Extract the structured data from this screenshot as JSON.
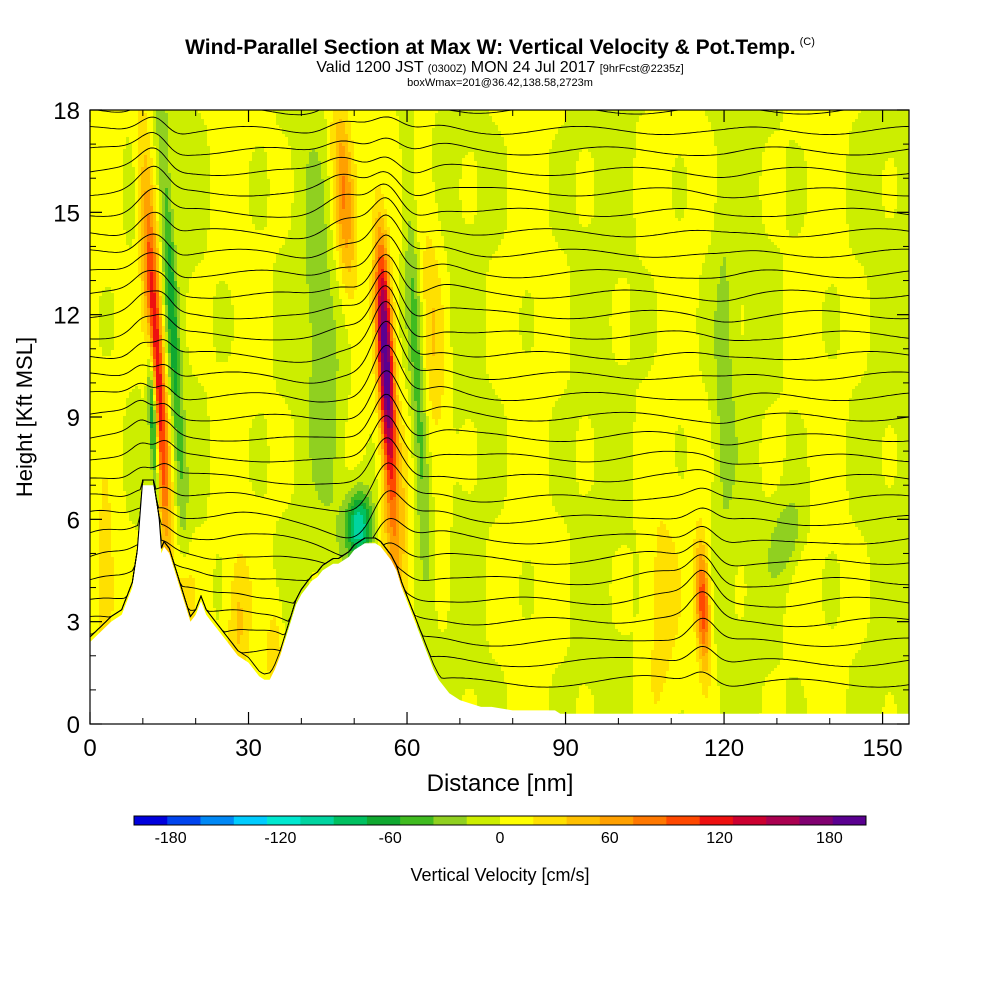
{
  "header": {
    "title": "Wind-Parallel Section at Max W: Vertical Velocity & Pot.Temp.",
    "title_mark": "(C)",
    "subtitle_main_1": "Valid 1200 JST",
    "subtitle_small_1": "(0300Z)",
    "subtitle_main_2": "MON 24 Jul 2017",
    "subtitle_small_2": "[9hrFcst@2235z]",
    "box_info": "boxWmax=201@36.42,138.58,2723m"
  },
  "colorbar": {
    "label": "Vertical Velocity [cm/s]",
    "tick_labels": [
      "-180",
      "-120",
      "-60",
      "0",
      "60",
      "120",
      "180"
    ],
    "tick_values": [
      -180,
      -120,
      -60,
      0,
      60,
      120,
      180
    ],
    "range": [
      -200,
      200
    ],
    "colors": [
      "#0000dd",
      "#0044ee",
      "#0088f5",
      "#00ccff",
      "#00e8d0",
      "#00d4a0",
      "#00c060",
      "#10a830",
      "#40bb20",
      "#90d020",
      "#ccee00",
      "#ffff00",
      "#ffe000",
      "#ffc000",
      "#ffa000",
      "#ff7800",
      "#ff4800",
      "#ee1010",
      "#cc0030",
      "#aa0050",
      "#800070",
      "#5a0090"
    ]
  },
  "chart_data": {
    "type": "heatmap",
    "xlabel": "Distance [nm]",
    "ylabel": "Height [Kft MSL]",
    "xlim": [
      0,
      155
    ],
    "ylim": [
      0,
      18
    ],
    "x_ticks": [
      0,
      30,
      60,
      90,
      120,
      150
    ],
    "x_tick_labels": [
      "0",
      "30",
      "60",
      "90",
      "120",
      "150"
    ],
    "y_ticks": [
      0,
      3,
      6,
      9,
      12,
      15,
      18
    ],
    "y_tick_labels": [
      "0",
      "3",
      "6",
      "9",
      "12",
      "15",
      "18"
    ],
    "terrain": [
      [
        0,
        2.4
      ],
      [
        2,
        2.7
      ],
      [
        4,
        3.0
      ],
      [
        6,
        3.2
      ],
      [
        7,
        3.6
      ],
      [
        8,
        4.0
      ],
      [
        9,
        5.0
      ],
      [
        10,
        7.0
      ],
      [
        11,
        7.0
      ],
      [
        12,
        7.0
      ],
      [
        13,
        6.0
      ],
      [
        13.5,
        5.0
      ],
      [
        14,
        5.2
      ],
      [
        15,
        5.0
      ],
      [
        16,
        4.5
      ],
      [
        17,
        4.0
      ],
      [
        18,
        3.5
      ],
      [
        19,
        3.0
      ],
      [
        20,
        3.2
      ],
      [
        21,
        3.6
      ],
      [
        22,
        3.2
      ],
      [
        23,
        3.0
      ],
      [
        24,
        2.8
      ],
      [
        25,
        2.6
      ],
      [
        26,
        2.4
      ],
      [
        27,
        2.2
      ],
      [
        28,
        2.0
      ],
      [
        30,
        1.8
      ],
      [
        31,
        1.6
      ],
      [
        32,
        1.4
      ],
      [
        33,
        1.3
      ],
      [
        34,
        1.3
      ],
      [
        35,
        1.6
      ],
      [
        36,
        2.0
      ],
      [
        37,
        2.5
      ],
      [
        38,
        3.0
      ],
      [
        39,
        3.5
      ],
      [
        40,
        3.8
      ],
      [
        41,
        4.0
      ],
      [
        42,
        4.2
      ],
      [
        43,
        4.3
      ],
      [
        44,
        4.5
      ],
      [
        45,
        4.6
      ],
      [
        46,
        4.7
      ],
      [
        47,
        4.7
      ],
      [
        48,
        4.8
      ],
      [
        49,
        4.9
      ],
      [
        50,
        5.1
      ],
      [
        51,
        5.2
      ],
      [
        52,
        5.3
      ],
      [
        53,
        5.3
      ],
      [
        54,
        5.3
      ],
      [
        55,
        5.2
      ],
      [
        56,
        5.0
      ],
      [
        57,
        4.8
      ],
      [
        58,
        4.5
      ],
      [
        59,
        4.0
      ],
      [
        60,
        3.6
      ],
      [
        61,
        3.2
      ],
      [
        62,
        2.8
      ],
      [
        63,
        2.4
      ],
      [
        64,
        2.0
      ],
      [
        65,
        1.6
      ],
      [
        66,
        1.3
      ],
      [
        67,
        1.1
      ],
      [
        68,
        0.9
      ],
      [
        70,
        0.7
      ],
      [
        72,
        0.6
      ],
      [
        74,
        0.5
      ],
      [
        76,
        0.5
      ],
      [
        80,
        0.4
      ],
      [
        85,
        0.4
      ],
      [
        88,
        0.4
      ],
      [
        89,
        0.3
      ],
      [
        92,
        0.3
      ],
      [
        100,
        0.3
      ],
      [
        110,
        0.3
      ],
      [
        120,
        0.3
      ],
      [
        130,
        0.3
      ],
      [
        140,
        0.3
      ],
      [
        150,
        0.3
      ],
      [
        155,
        0.3
      ]
    ],
    "updraft_features": [
      {
        "x": 12.5,
        "y": 10.5,
        "w": 150,
        "sigma_x": 1.6,
        "sigma_y": 5.5,
        "tilt": 0.35
      },
      {
        "x": 56,
        "y": 10.5,
        "w": 201,
        "sigma_x": 1.4,
        "sigma_y": 3.5,
        "tilt": 0.28
      },
      {
        "x": 48,
        "y": 15.5,
        "w": 70,
        "sigma_x": 2.0,
        "sigma_y": 3.0,
        "tilt": 0.35
      },
      {
        "x": 116,
        "y": 3.5,
        "w": 110,
        "sigma_x": 1.3,
        "sigma_y": 1.8,
        "tilt": 0.2
      },
      {
        "x": 58,
        "y": 5.0,
        "w": 45,
        "sigma_x": 2.5,
        "sigma_y": 3.0,
        "tilt": 0.0
      },
      {
        "x": 18,
        "y": 3.5,
        "w": 40,
        "sigma_x": 2.0,
        "sigma_y": 1.5,
        "tilt": 0.0
      },
      {
        "x": 28,
        "y": 3.0,
        "w": 35,
        "sigma_x": 2.0,
        "sigma_y": 2.0,
        "tilt": 0.0
      },
      {
        "x": 35,
        "y": 2.0,
        "w": 35,
        "sigma_x": 1.5,
        "sigma_y": 1.5,
        "tilt": 0.0
      },
      {
        "x": 65,
        "y": 11.0,
        "w": 35,
        "sigma_x": 2.5,
        "sigma_y": 5.0,
        "tilt": 0.25
      },
      {
        "x": 3,
        "y": 4.0,
        "w": 30,
        "sigma_x": 2.0,
        "sigma_y": 2.5,
        "tilt": 0.0
      },
      {
        "x": 108,
        "y": 3.5,
        "w": 25,
        "sigma_x": 3.0,
        "sigma_y": 3.0,
        "tilt": 0.0
      }
    ],
    "downdraft_features": [
      {
        "x": 12,
        "y": 9,
        "w": -140,
        "sigma_x": 0.9,
        "sigma_y": 2.5,
        "tilt": 0.3
      },
      {
        "x": 51,
        "y": 5.8,
        "w": -110,
        "sigma_x": 2.5,
        "sigma_y": 1.0,
        "tilt": 0.0
      },
      {
        "x": 15.5,
        "y": 12,
        "w": -60,
        "sigma_x": 1.2,
        "sigma_y": 6.0,
        "tilt": 0.35
      },
      {
        "x": 62,
        "y": 10,
        "w": -50,
        "sigma_x": 1.5,
        "sigma_y": 6.5,
        "tilt": 0.3
      },
      {
        "x": 44,
        "y": 11,
        "w": -30,
        "sigma_x": 3.0,
        "sigma_y": 5.0,
        "tilt": 0.35
      },
      {
        "x": 132,
        "y": 5.5,
        "w": -35,
        "sigma_x": 3.0,
        "sigma_y": 1.2,
        "tilt": -0.8
      },
      {
        "x": 120,
        "y": 10,
        "w": -25,
        "sigma_x": 2.0,
        "sigma_y": 5.0,
        "tilt": 0.0
      }
    ],
    "background_w": 8,
    "theta_contour_count": 30
  }
}
